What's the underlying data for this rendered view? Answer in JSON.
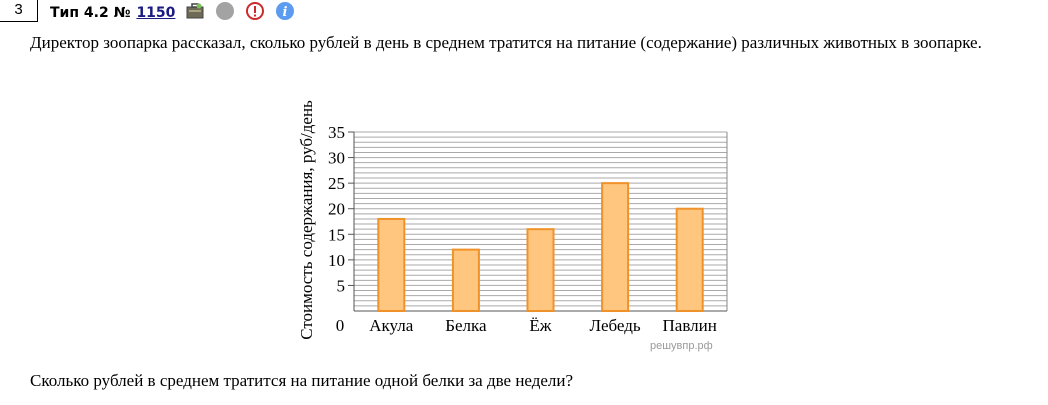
{
  "task": {
    "number": "3",
    "type_label": "Тип 4.2 №",
    "id": "1150",
    "icons": [
      "briefcase-icon",
      "grey-circle-icon",
      "warning-icon",
      "info-icon"
    ]
  },
  "intro_text": "Директор зоопарка рассказал, сколько рублей в день в среднем тратится на питание (содержание) различных животных в зоопарке.",
  "question_text": "Сколько рублей в среднем тратится на питание одной белки за две недели?",
  "watermark": "решувпр.рф",
  "chart_data": {
    "type": "bar",
    "categories": [
      "Акула",
      "Белка",
      "Ёж",
      "Лебедь",
      "Павлин"
    ],
    "values": [
      18,
      12,
      16,
      25,
      20
    ],
    "ylabel": "Стоимость содержания, руб/день",
    "xlabel": "",
    "ylim": [
      0,
      35
    ],
    "yticks": [
      5,
      10,
      15,
      20,
      25,
      30,
      35
    ],
    "zero_label": "0",
    "grid": "horizontal, step 1",
    "colors": {
      "bar_fill": "#ffc67f",
      "bar_stroke": "#f0922a",
      "grid": "#a9a9a9"
    }
  }
}
